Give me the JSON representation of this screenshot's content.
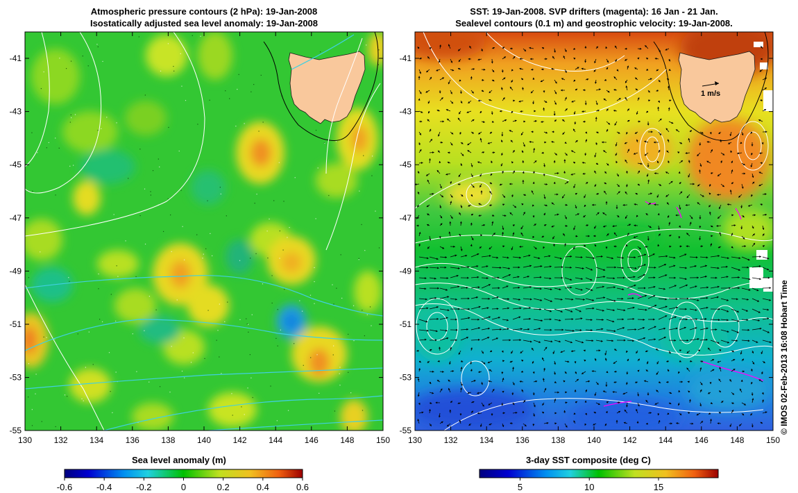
{
  "left_panel": {
    "title_line1": "Atmospheric pressure contours (2 hPa): 19-Jan-2008",
    "title_line2": "Isostatically adjusted sea level anomaly: 19-Jan-2008",
    "x_ticks": [
      "130",
      "132",
      "134",
      "136",
      "138",
      "140",
      "142",
      "144",
      "146",
      "148",
      "150"
    ],
    "y_ticks": [
      "-41",
      "-43",
      "-45",
      "-47",
      "-49",
      "-51",
      "-53",
      "-55"
    ],
    "colorbar_title": "Sea level anomaly (m)",
    "colorbar_ticks": [
      "-0.6",
      "-0.4",
      "-0.2",
      "0",
      "0.2",
      "0.4",
      "0.6"
    ],
    "colors": {
      "low": "#00007f",
      "mid": "#00c000",
      "high": "#9c0000",
      "land": "#f9c89c",
      "contour": "#ffffff",
      "isobar": "#40d0e0"
    }
  },
  "right_panel": {
    "title_line1": "SST: 19-Jan-2008. SVP drifters (magenta): 16 Jan - 21 Jan.",
    "title_line2": "Sealevel contours (0.1 m) and geostrophic velocity: 19-Jan-2008.",
    "x_ticks": [
      "130",
      "132",
      "134",
      "136",
      "138",
      "140",
      "142",
      "144",
      "146",
      "148",
      "150"
    ],
    "y_ticks": [
      "-41",
      "-43",
      "-45",
      "-47",
      "-49",
      "-51",
      "-53",
      "-55"
    ],
    "scale_label": "1 m/s",
    "colorbar_title": "3-day SST composite (deg C)",
    "colorbar_ticks": [
      "5",
      "10",
      "15"
    ],
    "colors": {
      "cold": "#00007f",
      "mid": "#00c000",
      "warm": "#9c0000",
      "land": "#f9c89c",
      "drifter": "#ff00ff"
    }
  },
  "credit": "© IMOS 02-Feb-2013 16:08 Hobart Time"
}
